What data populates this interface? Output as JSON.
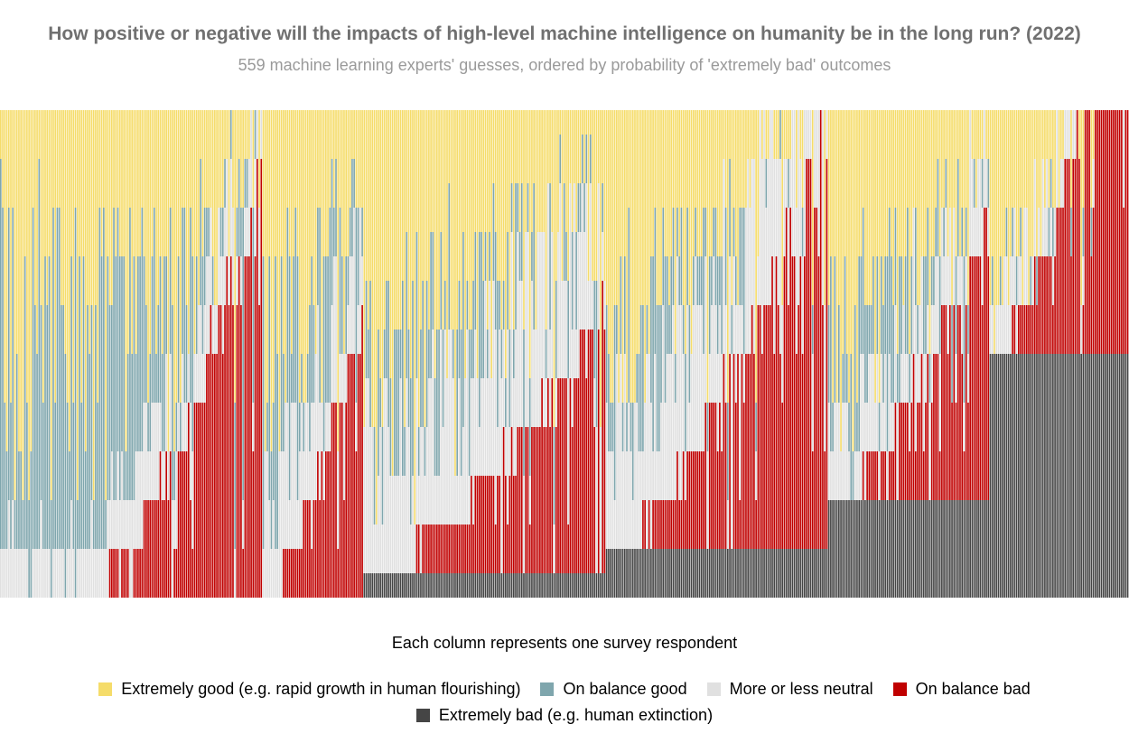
{
  "title": "How positive or negative will the impacts of high-level machine intelligence on humanity be in the long run? (2022)",
  "subtitle": "559 machine learning experts' guesses, ordered by probability of 'extremely bad' outcomes",
  "chart_data": {
    "type": "bar",
    "stacked": true,
    "normalized": true,
    "respondent_count": 559,
    "xlabel": "Each column represents one survey respondent",
    "ylim": [
      0,
      1
    ],
    "grid": false,
    "legend_position": "bottom",
    "series": [
      {
        "name": "Extremely good (e.g. rapid growth in human flourishing)",
        "color": "#f5dc6a"
      },
      {
        "name": "On balance good",
        "color": "#7fa6ad"
      },
      {
        "name": "More or less neutral",
        "color": "#e0e0e0"
      },
      {
        "name": "On balance bad",
        "color": "#c00000"
      },
      {
        "name": "Extremely bad (e.g. human extinction)",
        "color": "#454545"
      }
    ],
    "segments": [
      {
        "count": 40,
        "extremely_bad": 0.0,
        "bad_max": 0.0,
        "neutral": 0.1,
        "good": 0.45
      },
      {
        "count": 90,
        "extremely_bad": 0.0,
        "bad_max": 0.85,
        "neutral": 0.15,
        "good": 0.4
      },
      {
        "count": 50,
        "extremely_bad": 0.0,
        "bad_max": 0.6,
        "neutral": 0.2,
        "good": 0.35
      },
      {
        "count": 120,
        "extremely_bad": 0.05,
        "bad_max": 0.55,
        "neutral": 0.25,
        "good": 0.3
      },
      {
        "count": 110,
        "extremely_bad": 0.1,
        "bad_max": 0.85,
        "neutral": 0.25,
        "good": 0.3
      },
      {
        "count": 80,
        "extremely_bad": 0.2,
        "bad_max": 0.6,
        "neutral": 0.15,
        "good": 0.3
      },
      {
        "count": 69,
        "extremely_bad": 0.5,
        "bad_max": 0.95,
        "neutral": 0.1,
        "good": 0.15
      }
    ]
  }
}
